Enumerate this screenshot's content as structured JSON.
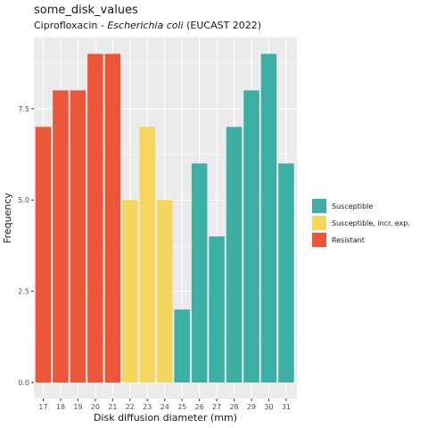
{
  "chart_data": {
    "type": "bar",
    "title": "some_disk_values",
    "subtitle_prefix": "Ciprofloxacin - ",
    "subtitle_italic": "Escherichia coli",
    "subtitle_suffix": " (EUCAST 2022)",
    "xlabel": "Disk diffusion diameter (mm)",
    "ylabel": "Frequency",
    "categories": [
      "17",
      "18",
      "19",
      "20",
      "21",
      "22",
      "23",
      "24",
      "25",
      "26",
      "27",
      "28",
      "29",
      "30",
      "31"
    ],
    "values": [
      7,
      8,
      8,
      9,
      9,
      5,
      7,
      5,
      2,
      6,
      4,
      7,
      8,
      9,
      6
    ],
    "interpretation": [
      "R",
      "R",
      "R",
      "R",
      "R",
      "I",
      "I",
      "I",
      "S",
      "S",
      "S",
      "S",
      "S",
      "S",
      "S"
    ],
    "y_ticks": [
      0,
      2.5,
      5,
      7.5
    ],
    "y_tick_labels": [
      "0.0",
      "2.5",
      "5.0",
      "7.5"
    ],
    "ylim": [
      0,
      9.45
    ],
    "grid": true,
    "legend_position": "right",
    "legend": [
      {
        "key": "S",
        "label": "Susceptible",
        "color": "#3CAEA3"
      },
      {
        "key": "I",
        "label": "Susceptible, incr. exp.",
        "color": "#F6D55C"
      },
      {
        "key": "R",
        "label": "Resistant",
        "color": "#ED553B"
      }
    ],
    "panel_background": "#EBEBEB"
  }
}
